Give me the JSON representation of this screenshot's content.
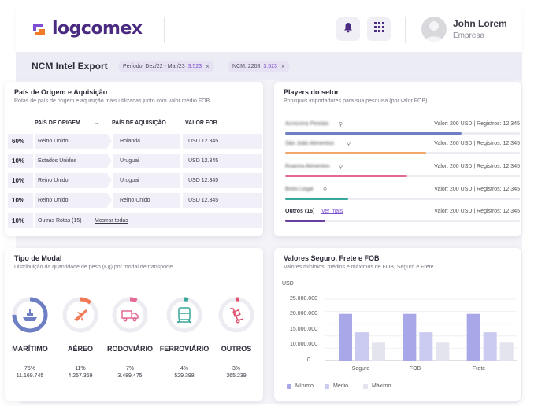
{
  "header": {
    "logo_text": "logcomex",
    "user_name": "John Lorem",
    "user_role": "Empresa",
    "icons": [
      "bell-icon",
      "apps-grid-icon",
      "user-avatar-icon"
    ]
  },
  "subbar": {
    "title": "NCM Intel Export",
    "chips": [
      {
        "label": "Período: Dez/22 - Mar/23",
        "count": "3.523",
        "close": "×"
      },
      {
        "label": "NCM: 2208",
        "count": "3.523",
        "close": "×"
      }
    ]
  },
  "routes": {
    "title": "País de Origem e Aquisição",
    "subtitle": "Rotas de país de origem e aquisição mais utilizadas junto com valor médio FOB",
    "columns": {
      "origin": "PAÍS DE ORIGEM",
      "arrow": "→",
      "acquisition": "PAÍS DE AQUISIÇÃO",
      "fob": "VALOR FOB"
    },
    "rows": [
      {
        "pct": "60%",
        "origin": "Reino Unido",
        "acquisition": "Holanda",
        "fob": "USD 12.345"
      },
      {
        "pct": "10%",
        "origin": "Estados Unidos",
        "acquisition": "Uruguai",
        "fob": "USD 12.345"
      },
      {
        "pct": "10%",
        "origin": "Reino Unido",
        "acquisition": "Uruguai",
        "fob": "USD 12.345"
      },
      {
        "pct": "10%",
        "origin": "Reino Unido",
        "acquisition": "Reino Unido",
        "fob": "USD 12.345"
      }
    ],
    "other": {
      "pct": "10%",
      "label": "Outras Rotas (15)",
      "link": "Mostrar todas"
    }
  },
  "players": {
    "title": "Players do setor",
    "subtitle": "Principais importadores para sua pesquisa (por valor FOB)",
    "items": [
      {
        "name": "Acnocera Peixilas",
        "value": "Valor: 200 USD | Registros: 12.345",
        "share": 0.75,
        "color": "#6f7fc4"
      },
      {
        "name": "São João Alimentos",
        "value": "Valor: 200 USD | Registros: 12.345",
        "share": 0.6,
        "color": "#f2a86a"
      },
      {
        "name": "Ruacira Alimentos",
        "value": "Valor: 200 USD | Registros: 12.345",
        "share": 0.52,
        "color": "#e46a95"
      },
      {
        "name": "Brelo Legal",
        "value": "Valor: 200 USD | Registros: 12.345",
        "share": 0.27,
        "color": "#3aa79a"
      }
    ],
    "other": {
      "label": "Outros (16)",
      "link": "Ver mais",
      "value": "Valor: 200 USD | Registros: 12.345",
      "share": 0.17,
      "color": "#6a3fa0"
    }
  },
  "modal": {
    "title": "Tipo de Modal",
    "subtitle": "Distribuição da quantidade de peso (Kg) por modal de transporte",
    "items": [
      {
        "label": "MARÍTIMO",
        "pct": "75%",
        "value": "11.169.745",
        "share": 0.75,
        "color": "#6f7fc4",
        "icon": "ship-icon"
      },
      {
        "label": "AÉREO",
        "pct": "11%",
        "value": "4.257.369",
        "share": 0.11,
        "color": "#f07a55",
        "icon": "airplane-icon"
      },
      {
        "label": "RODOVIÁRIO",
        "pct": "7%",
        "value": "3.489.475",
        "share": 0.07,
        "color": "#e46a95",
        "icon": "truck-icon"
      },
      {
        "label": "FERROVIÁRIO",
        "pct": "4%",
        "value": "529.398",
        "share": 0.04,
        "color": "#3aa79a",
        "icon": "train-icon"
      },
      {
        "label": "OUTROS",
        "pct": "3%",
        "value": "365.239",
        "share": 0.03,
        "color": "#e0506d",
        "icon": "hand-truck-icon"
      }
    ]
  },
  "values_chart": {
    "title": "Valores Seguro, Frete e FOB",
    "subtitle": "Valores mínimos, médios e máximos de FOB, Seguro e Frete.",
    "unit": "USD"
  },
  "chart_data": {
    "type": "bar",
    "title": "Valores Seguro, Frete e FOB",
    "ylabel": "USD",
    "categories": [
      "Seguro",
      "FOB",
      "Frete"
    ],
    "ylim": [
      0,
      25000000
    ],
    "yticks": [
      "25.000.000",
      "20.000.000",
      "15.000.000",
      "10.000.000",
      "5.000.000",
      "0"
    ],
    "ytick_values": [
      25000000,
      20000000,
      15000000,
      10000000,
      5000000,
      0
    ],
    "legend_position": "bottom",
    "series": [
      {
        "name": "Mínimo",
        "color": "#a8a7e8",
        "values": [
          19000000,
          19000000,
          19000000
        ]
      },
      {
        "name": "Médio",
        "color": "#cbcbf2",
        "values": [
          11500000,
          11500000,
          11500000
        ]
      },
      {
        "name": "Máximo",
        "color": "#e4e4ee",
        "values": [
          7300000,
          7300000,
          7300000
        ]
      }
    ]
  }
}
